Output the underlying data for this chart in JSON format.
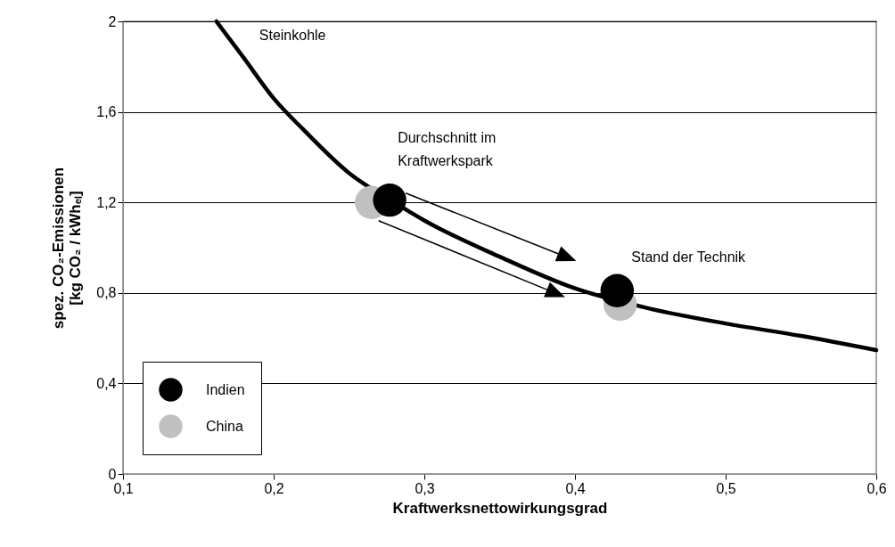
{
  "chart_data": {
    "type": "line",
    "xlabel": "Kraftwerksnettowirkungsgrad",
    "ylabel": "spez. CO₂-Emissionen\n[kg CO₂ / kWhₑₗ]",
    "xlim": [
      0.1,
      0.6
    ],
    "xticks": [
      {
        "value": 0.1,
        "label": "0,1"
      },
      {
        "value": 0.2,
        "label": "0,2"
      },
      {
        "value": 0.3,
        "label": "0,3"
      },
      {
        "value": 0.4,
        "label": "0,4"
      },
      {
        "value": 0.5,
        "label": "0,5"
      },
      {
        "value": 0.6,
        "label": "0,6"
      }
    ],
    "ylim": [
      0,
      2
    ],
    "yticks": [
      0,
      {
        "value": 0.4,
        "label": "0,4"
      },
      {
        "value": 0.8,
        "label": "0,8"
      },
      {
        "value": 1.2,
        "label": "1,2"
      },
      {
        "value": 1.6,
        "label": "1,6"
      },
      2
    ],
    "grid": "y",
    "legend": "bottom left",
    "series": [
      {
        "name": "Steinkohle",
        "color": "#000000",
        "x": [
          0.162,
          0.18,
          0.2,
          0.22,
          0.25,
          0.28,
          0.3,
          0.35,
          0.4,
          0.45,
          0.5,
          0.55,
          0.6
        ],
        "values": [
          2.0,
          1.84,
          1.66,
          1.52,
          1.33,
          1.2,
          1.12,
          0.96,
          0.82,
          0.73,
          0.665,
          0.61,
          0.547
        ]
      },
      {
        "name": "Indien",
        "type": "scatter",
        "color": "#000000",
        "x": [
          0.277,
          0.428
        ],
        "values": [
          1.21,
          0.81
        ]
      },
      {
        "name": "China",
        "type": "scatter",
        "color": "#c0c0c0",
        "x": [
          0.265,
          0.43
        ],
        "values": [
          1.2,
          0.75
        ]
      }
    ],
    "annotations": [
      "Durchschnitt im\nKraftwerkspark",
      "Stand der Technik"
    ]
  }
}
